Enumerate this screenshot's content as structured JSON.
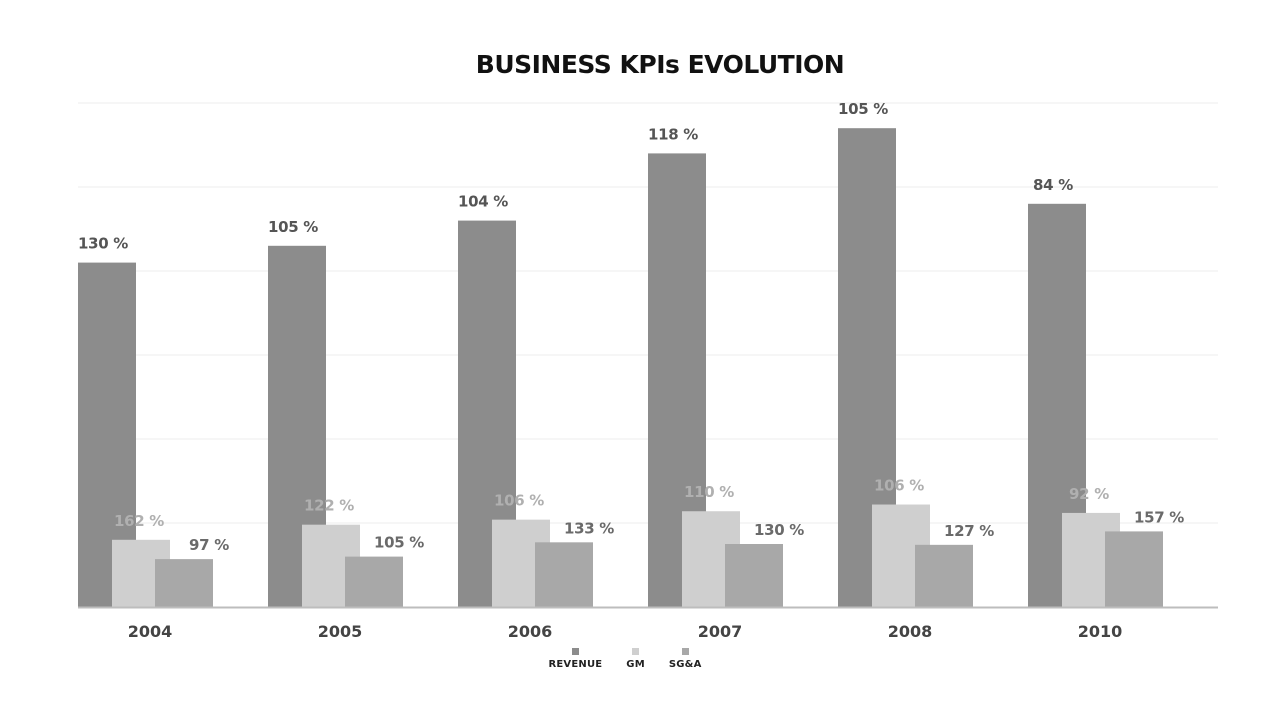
{
  "chart_data": {
    "type": "bar",
    "title": "BUSINESS KPIs EVOLUTION",
    "categories": [
      "2004",
      "2005",
      "2006",
      "2007",
      "2008",
      "2010"
    ],
    "series": [
      {
        "name": "REVENUE",
        "color": "#8c8c8c",
        "text_color": "#555555",
        "values": [
          4.1,
          4.3,
          4.6,
          5.4,
          5.7,
          4.8
        ],
        "labels": [
          "130 %",
          "105 %",
          "104 %",
          "118 %",
          "105 %",
          "84 %"
        ]
      },
      {
        "name": "GM",
        "color": "#cfcfcf",
        "text_color": "#b0b0b0",
        "values": [
          0.8,
          0.98,
          1.04,
          1.14,
          1.22,
          1.12
        ],
        "labels": [
          "162 %",
          "122 %",
          "106 %",
          "110 %",
          "106 %",
          "92 %"
        ]
      },
      {
        "name": "SG&A",
        "color": "#a8a8a8",
        "text_color": "#6a6a6a",
        "values": [
          0.57,
          0.6,
          0.77,
          0.75,
          0.74,
          0.9
        ],
        "labels": [
          "97 %",
          "105 %",
          "133 %",
          "130 %",
          "127 %",
          "157 %"
        ]
      }
    ],
    "ylim": [
      0,
      6
    ],
    "grid": true,
    "legend": "bottom"
  }
}
